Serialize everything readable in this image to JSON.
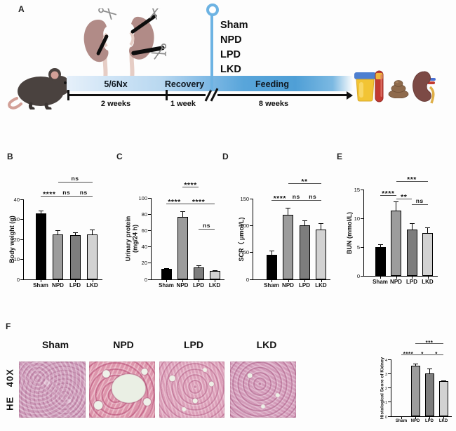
{
  "panels": {
    "a": "A",
    "b": "B",
    "c": "C",
    "d": "D",
    "e": "E",
    "f": "F"
  },
  "panel_a": {
    "phases": [
      {
        "name": "5/6Nx",
        "duration": "2 weeks"
      },
      {
        "name": "Recovery",
        "duration": "1 week"
      },
      {
        "name": "Feeding",
        "duration": "8 weeks"
      }
    ],
    "groups": [
      "Sham",
      "NPD",
      "LPD",
      "LKD"
    ],
    "icons": [
      "mouse-icon",
      "kidneys-scissors-icon",
      "pin-marker-icon",
      "urine-cup-icon",
      "blood-tube-icon",
      "feces-icon",
      "kidney-icon"
    ]
  },
  "colors": {
    "bars": [
      "#000000",
      "#9c9c9c",
      "#7d7d7d",
      "#d2d2d2"
    ],
    "timeline_blue": "#58a5da",
    "pin_blue": "#6db3e3",
    "sig_line": "#4d4d4d"
  },
  "chart_data": [
    {
      "type": "bar",
      "panel": "B",
      "ylabel": "Body weight (g)",
      "categories": [
        "Sham",
        "NPD",
        "LPD",
        "LKD"
      ],
      "values": [
        33,
        22.5,
        22,
        22.3
      ],
      "errors": [
        1.3,
        2,
        1.4,
        2.5
      ],
      "ylim": [
        0,
        40
      ],
      "yticks": [
        0,
        10,
        20,
        30,
        40
      ],
      "significance": [
        {
          "a": 0,
          "b": 1,
          "text": "****",
          "y": 41.5
        },
        {
          "a": 1,
          "b": 2,
          "text": "ns",
          "y": 41.5
        },
        {
          "a": 2,
          "b": 3,
          "text": "ns",
          "y": 41.5
        },
        {
          "a": 1,
          "b": 3,
          "text": "ns",
          "y": 48.5
        }
      ]
    },
    {
      "type": "bar",
      "panel": "C",
      "ylabel": "Urinary protein\n(mg/24 h)",
      "categories": [
        "Sham",
        "NPD",
        "LPD",
        "LKD"
      ],
      "values": [
        13,
        77,
        14.5,
        10
      ],
      "errors": [
        1,
        7,
        2.5,
        1.3
      ],
      "ylim": [
        0,
        100
      ],
      "yticks": [
        0,
        20,
        40,
        60,
        80,
        100
      ],
      "significance": [
        {
          "a": 0,
          "b": 1,
          "text": "****",
          "y": 92
        },
        {
          "a": 1,
          "b": 3,
          "text": "****",
          "y": 92
        },
        {
          "a": 1,
          "b": 2,
          "text": "****",
          "y": 113
        },
        {
          "a": 2,
          "b": 3,
          "text": "ns",
          "y": 61
        }
      ]
    },
    {
      "type": "bar",
      "panel": "D",
      "ylabel": "SCR（ μmol/L)",
      "categories": [
        "Sham",
        "NPD",
        "LPD",
        "LKD"
      ],
      "values": [
        46,
        120,
        100,
        92
      ],
      "errors": [
        7,
        13,
        9,
        12
      ],
      "ylim": [
        0,
        150
      ],
      "yticks": [
        0,
        50,
        100,
        150
      ],
      "significance": [
        {
          "a": 0,
          "b": 1,
          "text": "****",
          "y": 146
        },
        {
          "a": 1,
          "b": 2,
          "text": "ns",
          "y": 146
        },
        {
          "a": 2,
          "b": 3,
          "text": "ns",
          "y": 146
        },
        {
          "a": 1,
          "b": 3,
          "text": "**",
          "y": 178
        }
      ]
    },
    {
      "type": "bar",
      "panel": "E",
      "ylabel": "BUN (mmol/L)",
      "categories": [
        "Sham",
        "NPD",
        "LPD",
        "LKD"
      ],
      "values": [
        5,
        11.3,
        8.1,
        7.4
      ],
      "errors": [
        0.5,
        1.6,
        1,
        1
      ],
      "ylim": [
        0,
        15
      ],
      "yticks": [
        0,
        5,
        10,
        15
      ],
      "significance": [
        {
          "a": 0,
          "b": 1,
          "text": "****",
          "y": 13.9
        },
        {
          "a": 1,
          "b": 2,
          "text": "**",
          "y": 13.3
        },
        {
          "a": 2,
          "b": 3,
          "text": "ns",
          "y": 12.3
        },
        {
          "a": 1,
          "b": 3,
          "text": "***",
          "y": 16.4
        }
      ]
    },
    {
      "type": "bar",
      "panel": "F",
      "ylabel": "Histological Score of Kidney",
      "categories": [
        "Sham",
        "NPD",
        "LPD",
        "LKD"
      ],
      "values": [
        0,
        3.55,
        3.0,
        2.45
      ],
      "errors": [
        0,
        0.15,
        0.35,
        0.08
      ],
      "ylim": [
        0,
        4
      ],
      "yticks": [
        0,
        1,
        2,
        3,
        4
      ],
      "significance": [
        {
          "a": 0,
          "b": 1,
          "text": "****",
          "y": 4.3
        },
        {
          "a": 1,
          "b": 2,
          "text": "*",
          "y": 4.3
        },
        {
          "a": 2,
          "b": 3,
          "text": "*",
          "y": 4.3
        },
        {
          "a": 1,
          "b": 3,
          "text": "***",
          "y": 5.1
        }
      ]
    }
  ],
  "panel_f": {
    "stain_label": "HE 40X",
    "columns": [
      "Sham",
      "NPD",
      "LPD",
      "LKD"
    ]
  }
}
